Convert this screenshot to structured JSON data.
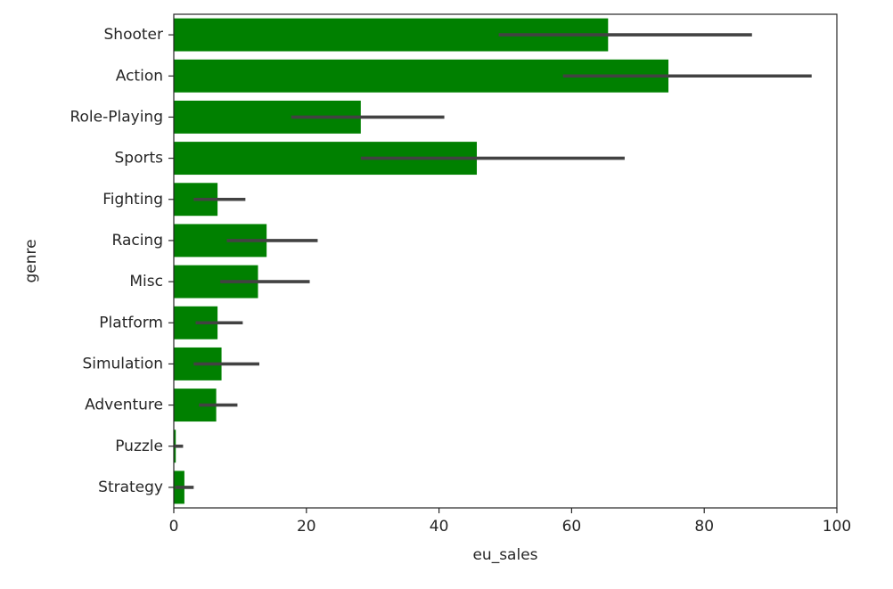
{
  "chart_data": {
    "type": "bar",
    "orientation": "horizontal",
    "xlabel": "eu_sales",
    "ylabel": "genre",
    "xlim": [
      0,
      100
    ],
    "xticks": [
      0,
      20,
      40,
      60,
      80,
      100
    ],
    "bar_color": "#008000",
    "errorbar_color": "#424242",
    "categories": [
      "Shooter",
      "Action",
      "Role-Playing",
      "Sports",
      "Fighting",
      "Racing",
      "Misc",
      "Platform",
      "Simulation",
      "Adventure",
      "Puzzle",
      "Strategy"
    ],
    "values": [
      65.5,
      74.6,
      28.2,
      45.7,
      6.6,
      14.0,
      12.7,
      6.6,
      7.2,
      6.4,
      0.3,
      1.6
    ],
    "ci_low": [
      49.0,
      58.7,
      17.7,
      28.2,
      3.0,
      8.0,
      7.0,
      3.3,
      3.0,
      3.8,
      0.0,
      0.2
    ],
    "ci_high": [
      87.2,
      96.2,
      40.8,
      68.0,
      10.8,
      21.7,
      20.5,
      10.4,
      12.9,
      9.6,
      1.4,
      3.0
    ]
  }
}
